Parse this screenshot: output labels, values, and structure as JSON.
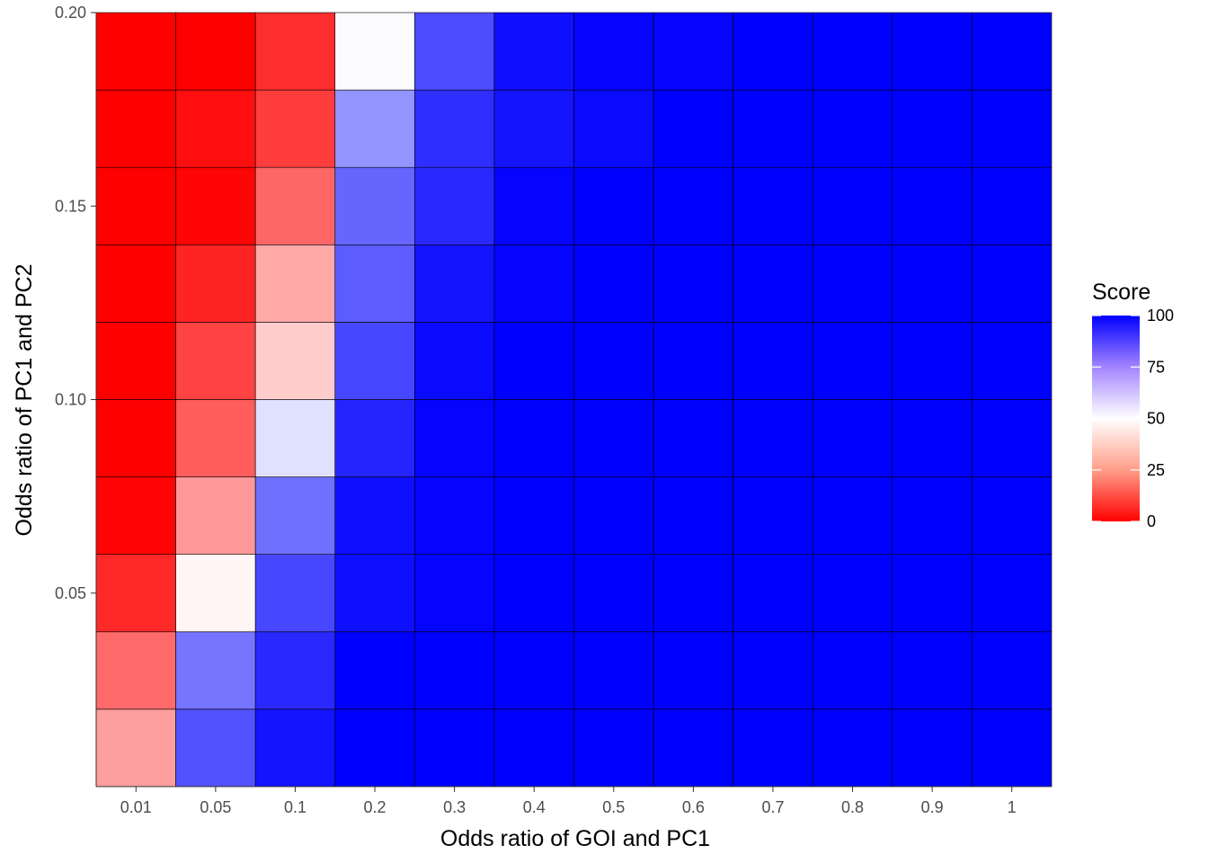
{
  "chart_data": {
    "type": "heatmap",
    "title": "",
    "xlabel": "Odds ratio of GOI and PC1",
    "ylabel": "Odds ratio of PC1 and PC2",
    "x_categories": [
      "0.01",
      "0.05",
      "0.1",
      "0.2",
      "0.3",
      "0.4",
      "0.5",
      "0.6",
      "0.7",
      "0.8",
      "0.9",
      "1"
    ],
    "y_values": [
      0.01,
      0.03,
      0.05,
      0.07,
      0.09,
      0.11,
      0.13,
      0.15,
      0.17,
      0.19
    ],
    "y_ticks": [
      0.05,
      0.1,
      0.15,
      0.2
    ],
    "y_tick_labels": [
      "0.05",
      "0.10",
      "0.15",
      "0.20"
    ],
    "ylim": [
      0.0,
      0.2
    ],
    "z_matrix": [
      [
        31,
        84,
        96,
        100,
        100,
        100,
        100,
        100,
        100,
        100,
        100,
        100
      ],
      [
        21,
        77,
        92,
        100,
        100,
        100,
        100,
        100,
        100,
        100,
        100,
        100
      ],
      [
        8,
        48,
        86,
        97,
        99,
        100,
        100,
        100,
        100,
        100,
        100,
        100
      ],
      [
        1,
        30,
        78,
        97,
        99,
        100,
        100,
        100,
        100,
        100,
        100,
        100
      ],
      [
        0,
        18,
        56,
        93,
        99,
        100,
        100,
        100,
        100,
        100,
        100,
        100
      ],
      [
        0,
        13,
        40,
        86,
        98,
        100,
        100,
        100,
        100,
        100,
        100,
        100
      ],
      [
        0,
        7,
        33,
        82,
        96,
        99,
        100,
        100,
        100,
        100,
        100,
        100
      ],
      [
        0,
        1,
        20,
        80,
        92,
        99,
        100,
        100,
        100,
        100,
        100,
        100
      ],
      [
        0,
        3,
        12,
        71,
        91,
        96,
        98,
        100,
        100,
        100,
        100,
        100
      ],
      [
        0,
        0,
        9,
        51,
        85,
        97,
        99,
        99,
        100,
        100,
        100,
        100
      ]
    ],
    "color_scale": {
      "low": "#FF0000",
      "mid": "#FFFFFF",
      "high": "#0000FF",
      "midpoint": 50,
      "limits": [
        0,
        100
      ]
    },
    "legend": {
      "title": "Score",
      "placement": "right",
      "breaks": [
        0,
        25,
        50,
        75,
        100
      ],
      "break_labels": [
        "0",
        "25",
        "50",
        "75",
        "100"
      ]
    },
    "grid": false
  }
}
